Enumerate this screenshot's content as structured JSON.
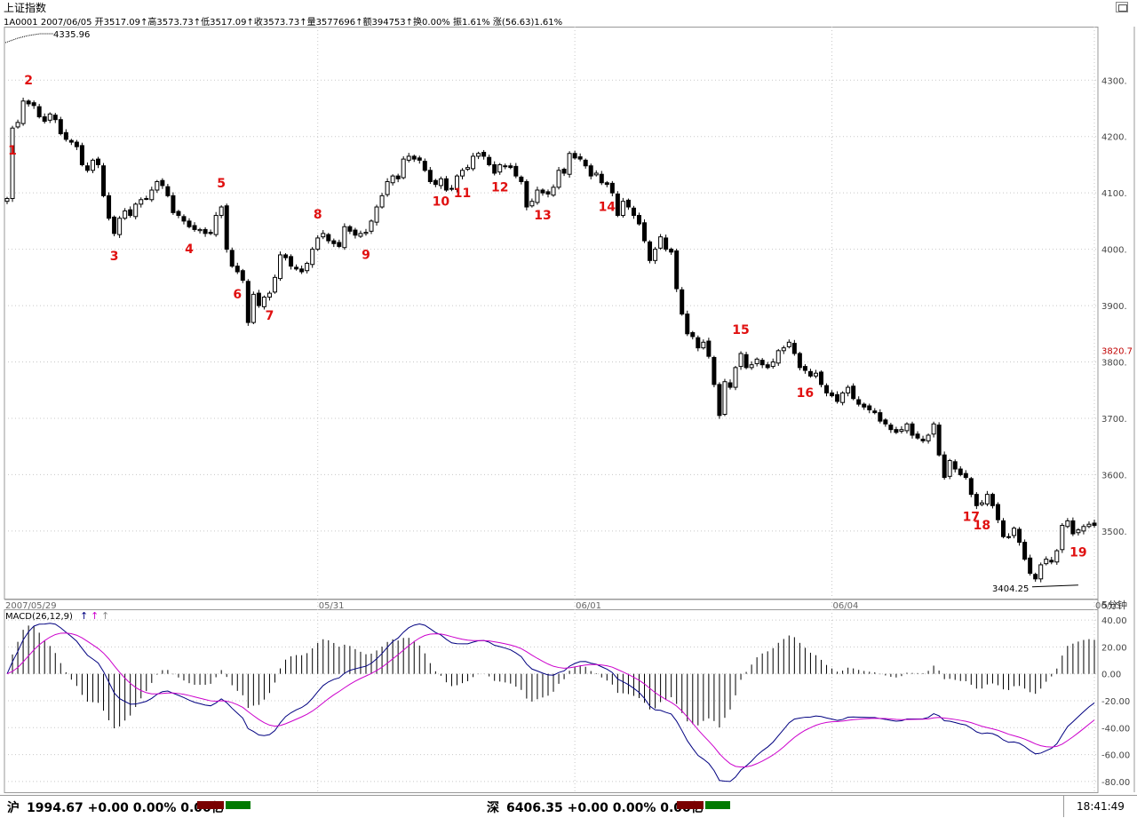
{
  "window": {
    "title": "上证指数"
  },
  "infoline": {
    "text": "1A0001 2007/06/05 开3517.09↑高3573.73↑低3517.09↑收3573.73↑量3577696↑额394753↑换0.00% 振1.61% 涨(56.63)1.61%"
  },
  "chart_data": [
    {
      "type": "candlestick",
      "period_label": "5分钟",
      "y_ticks": [
        "4300.",
        "4200.",
        "4100.",
        "4000.",
        "3900.",
        "3800.",
        "3700.",
        "3600.",
        "3500."
      ],
      "ylim": [
        3380,
        4395
      ],
      "x_labels": [
        "2007/05/29",
        "05/31",
        "06/01",
        "06/04",
        "06/05"
      ],
      "current_price_label": "3820.7",
      "max_label": "4335.96",
      "min_label": "3404.25",
      "closes": [
        4090,
        4215,
        4225,
        4263,
        4258,
        4255,
        4235,
        4227,
        4240,
        4230,
        4205,
        4195,
        4190,
        4182,
        4150,
        4140,
        4158,
        4150,
        4095,
        4055,
        4028,
        4055,
        4068,
        4060,
        4080,
        4088,
        4090,
        4105,
        4120,
        4113,
        4095,
        4065,
        4060,
        4050,
        4040,
        4035,
        4035,
        4028,
        4028,
        4060,
        4075,
        4000,
        3970,
        3960,
        3945,
        3870,
        3920,
        3900,
        3915,
        3922,
        3950,
        3990,
        3985,
        3970,
        3965,
        3960,
        3975,
        4000,
        4020,
        4028,
        4015,
        4010,
        4005,
        4040,
        4032,
        4025,
        4028,
        4030,
        4050,
        4075,
        4095,
        4120,
        4130,
        4125,
        4160,
        4165,
        4160,
        4158,
        4140,
        4120,
        4115,
        4125,
        4105,
        4108,
        4130,
        4140,
        4145,
        4165,
        4170,
        4165,
        4150,
        4135,
        4150,
        4148,
        4145,
        4130,
        4120,
        4075,
        4085,
        4105,
        4100,
        4098,
        4110,
        4140,
        4135,
        4170,
        4162,
        4160,
        4148,
        4130,
        4135,
        4118,
        4115,
        4100,
        4060,
        4085,
        4075,
        4060,
        4045,
        4015,
        3980,
        4000,
        4022,
        4000,
        3995,
        3930,
        3885,
        3850,
        3845,
        3825,
        3835,
        3810,
        3760,
        3705,
        3765,
        3755,
        3790,
        3815,
        3790,
        3795,
        3805,
        3795,
        3790,
        3800,
        3820,
        3825,
        3835,
        3815,
        3790,
        3785,
        3775,
        3780,
        3760,
        3745,
        3740,
        3730,
        3745,
        3755,
        3735,
        3725,
        3720,
        3715,
        3710,
        3695,
        3690,
        3680,
        3675,
        3680,
        3690,
        3670,
        3665,
        3660,
        3670,
        3690,
        3635,
        3595,
        3625,
        3610,
        3600,
        3595,
        3565,
        3545,
        3550,
        3565,
        3545,
        3520,
        3490,
        3490,
        3505,
        3480,
        3450,
        3425,
        3415,
        3440,
        3450,
        3445,
        3465,
        3510,
        3518,
        3495,
        3502,
        3508,
        3512,
        3510
      ],
      "macd_label": "MACD(26,12,9)",
      "macd_ticks": [
        "40.00",
        "20.00",
        "0.00",
        "-20.00",
        "-40.00",
        "-60.00",
        "-80.00"
      ],
      "macd_ylim": [
        -88,
        48
      ]
    }
  ],
  "annotations": [
    {
      "label": "1",
      "ci": 1
    },
    {
      "label": "2",
      "ci": 4
    },
    {
      "label": "3",
      "ci": 20
    },
    {
      "label": "4",
      "ci": 34
    },
    {
      "label": "5",
      "ci": 40
    },
    {
      "label": "6",
      "ci": 43
    },
    {
      "label": "7",
      "ci": 49
    },
    {
      "label": "8",
      "ci": 58
    },
    {
      "label": "9",
      "ci": 67
    },
    {
      "label": "10",
      "ci": 81
    },
    {
      "label": "11",
      "ci": 85
    },
    {
      "label": "12",
      "ci": 92
    },
    {
      "label": "13",
      "ci": 100
    },
    {
      "label": "14",
      "ci": 112
    },
    {
      "label": "15",
      "ci": 137
    },
    {
      "label": "16",
      "ci": 149
    },
    {
      "label": "17",
      "ci": 180
    },
    {
      "label": "18",
      "ci": 182
    },
    {
      "label": "19",
      "ci": 200
    }
  ],
  "statusbar": {
    "sh_label": "沪",
    "sh_value": "1994.67 +0.00 0.00% 0.00亿",
    "sz_label": "深",
    "sz_value": "6406.35 +0.00 0.00% 0.00亿",
    "time": "18:41:49"
  },
  "colors": {
    "grid": "#c8c8c8",
    "candle": "#000000",
    "annotation": "#e01010",
    "dea_line": "#cc00cc",
    "dif_line": "#000080",
    "current_price": "#c00000",
    "status_red": "#7a0000",
    "status_green": "#007a00"
  }
}
